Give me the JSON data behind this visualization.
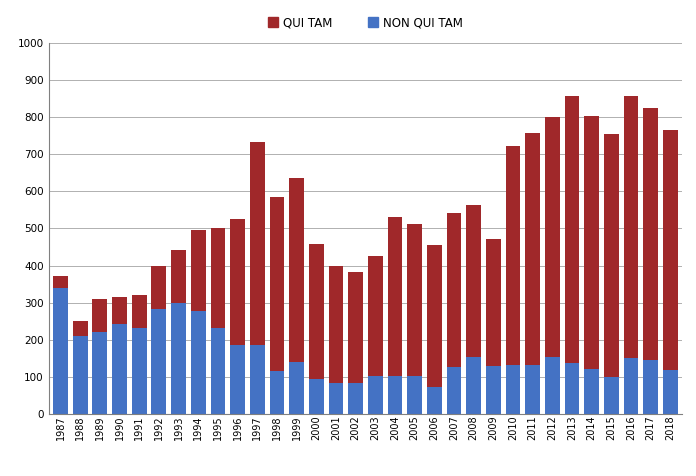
{
  "years": [
    1987,
    1988,
    1989,
    1990,
    1991,
    1992,
    1993,
    1994,
    1995,
    1996,
    1997,
    1998,
    1999,
    2000,
    2001,
    2002,
    2003,
    2004,
    2005,
    2006,
    2007,
    2008,
    2009,
    2010,
    2011,
    2012,
    2013,
    2014,
    2015,
    2016,
    2017,
    2018
  ],
  "non_qui_tam": [
    340,
    210,
    220,
    242,
    233,
    282,
    300,
    277,
    232,
    185,
    185,
    117,
    141,
    95,
    83,
    83,
    103,
    103,
    103,
    72,
    128,
    154,
    130,
    131,
    131,
    155,
    137,
    122,
    101,
    150,
    145,
    120
  ],
  "qui_tam": [
    33,
    40,
    90,
    73,
    87,
    118,
    143,
    218,
    268,
    340,
    548,
    469,
    494,
    362,
    317,
    300,
    323,
    427,
    408,
    384,
    413,
    408,
    342,
    591,
    626,
    645,
    720,
    681,
    653,
    706,
    680,
    645
  ],
  "qui_tam_color": "#a0282a",
  "non_qui_tam_color": "#4472c4",
  "ylim": [
    0,
    1000
  ],
  "yticks": [
    0,
    100,
    200,
    300,
    400,
    500,
    600,
    700,
    800,
    900,
    1000
  ],
  "legend_labels": [
    "QUI TAM",
    "NON QUI TAM"
  ],
  "background_color": "#ffffff",
  "grid_color": "#b0b0b0"
}
